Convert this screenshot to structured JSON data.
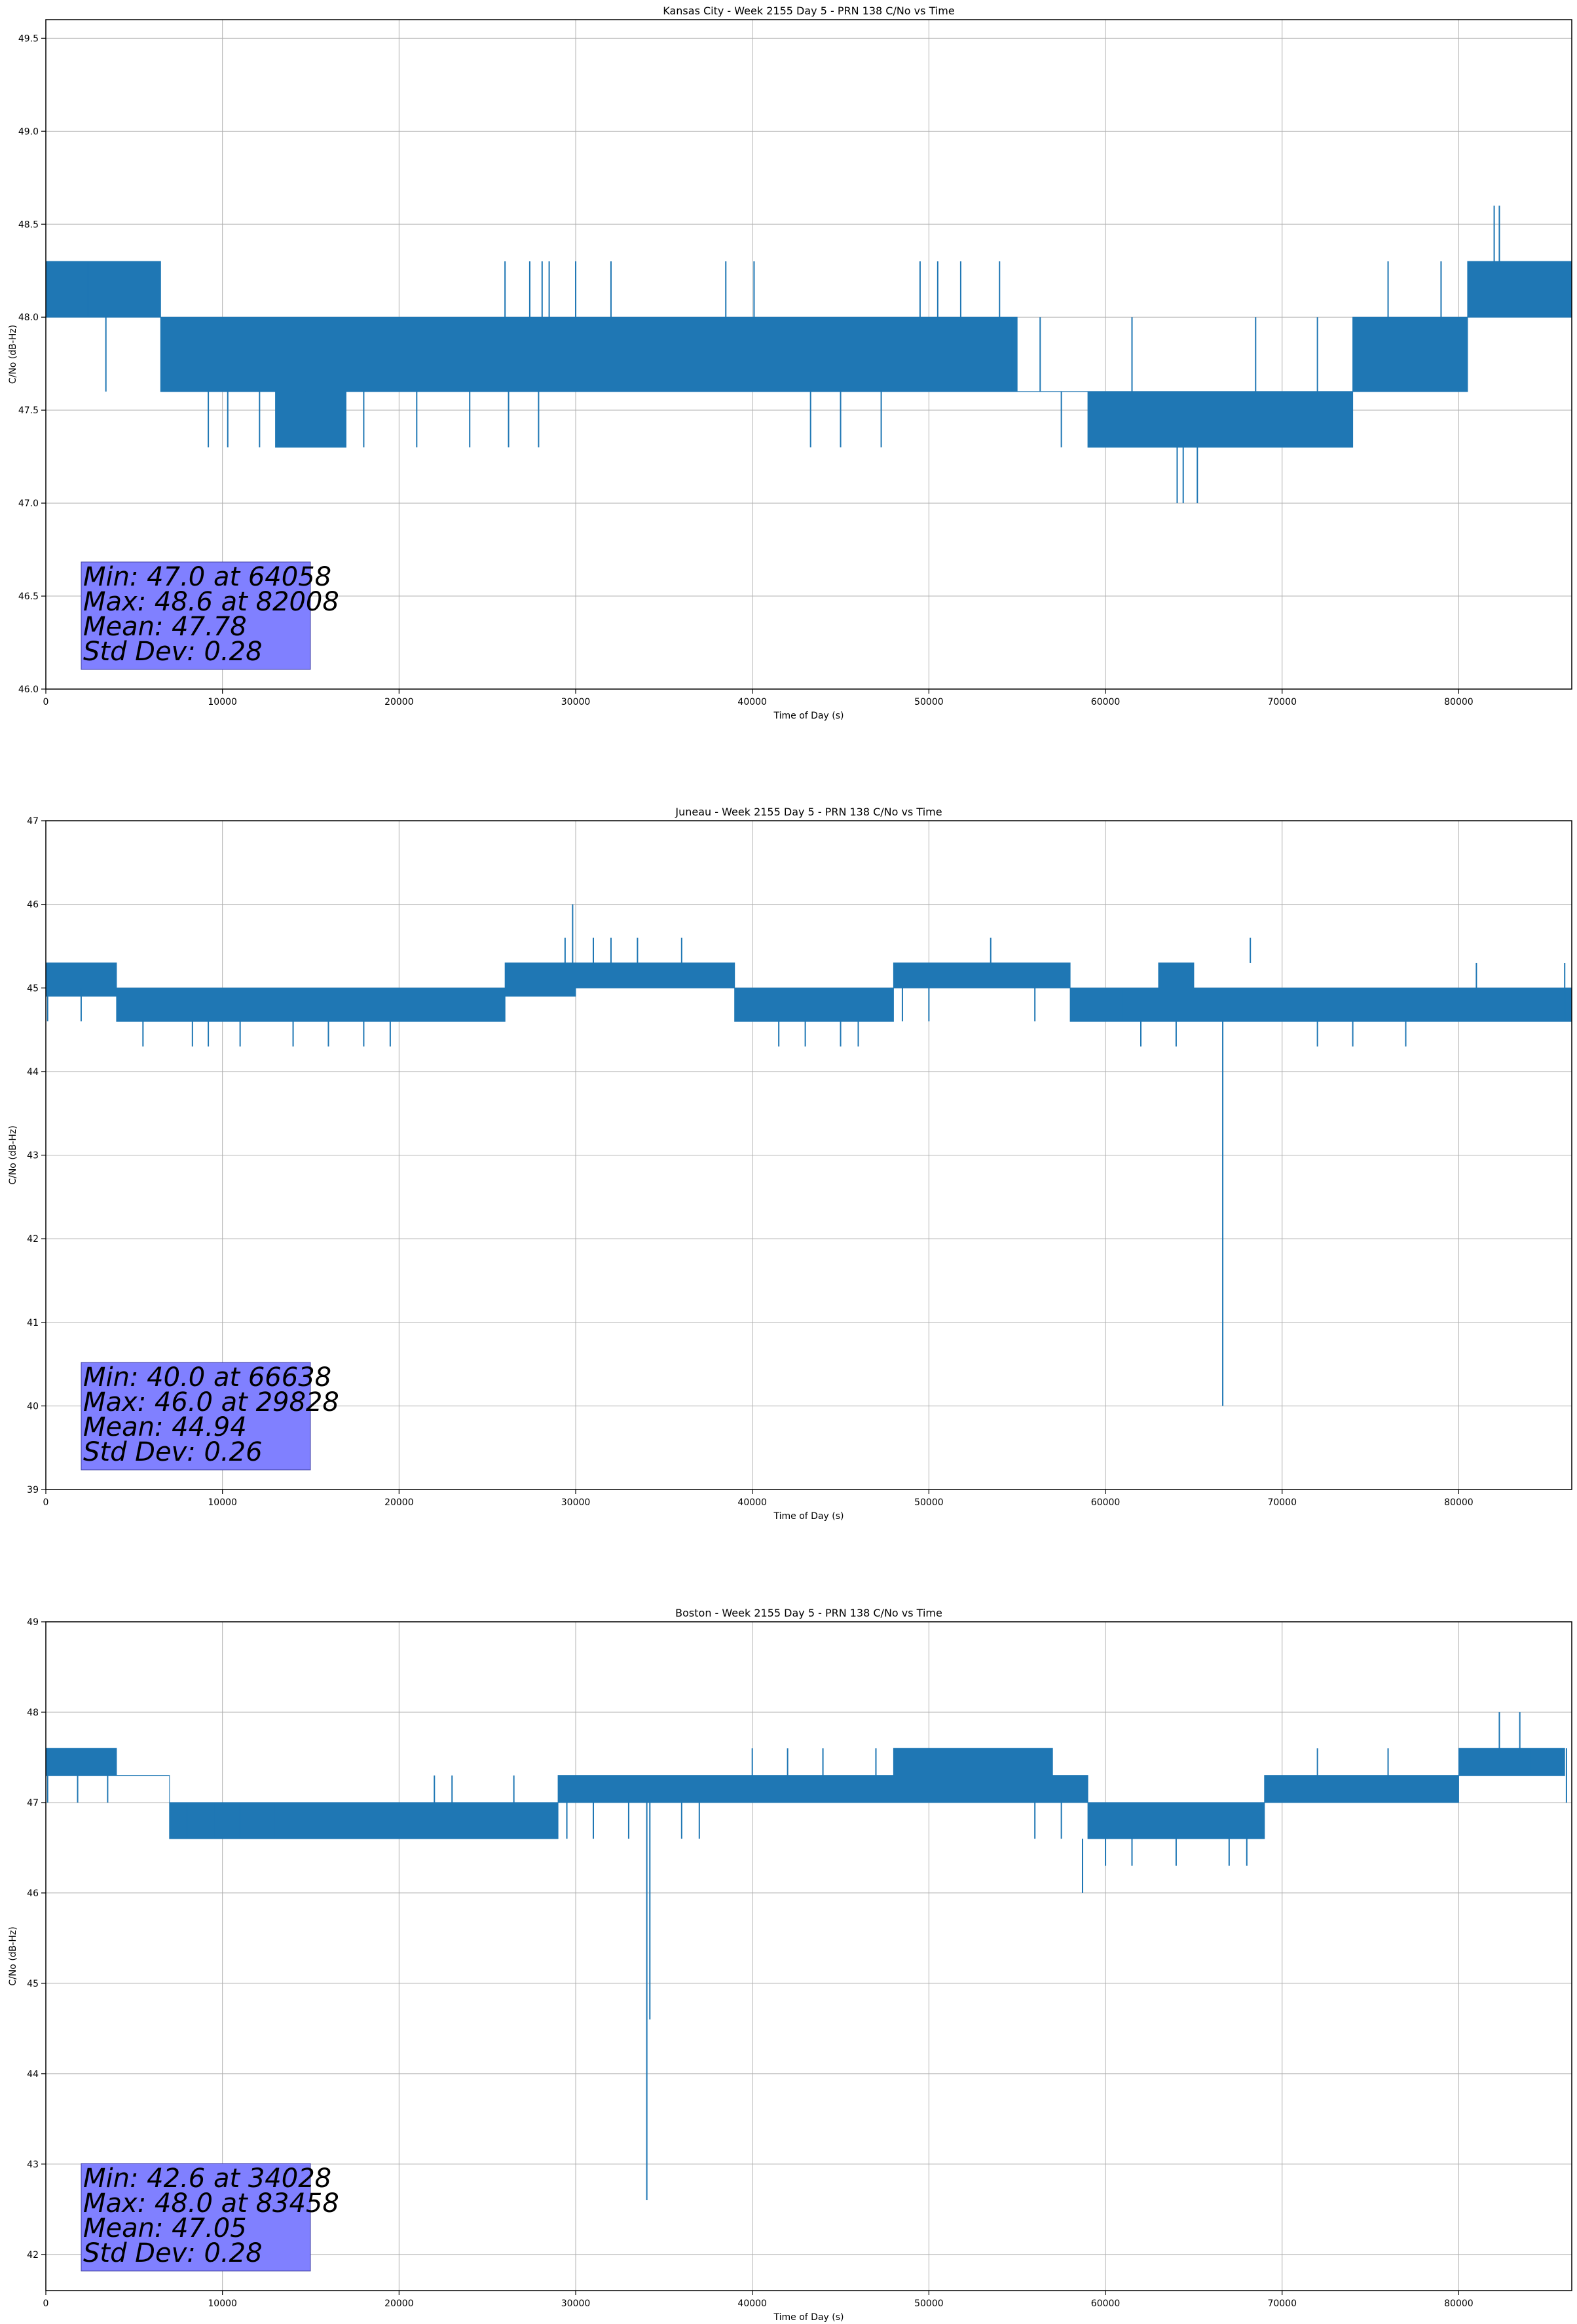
{
  "figure": {
    "background": "#ffffff"
  },
  "style": {
    "line_color": "#1f77b4",
    "grid_color": "#b0b0b0",
    "stats_box_color": "#8080ff"
  },
  "chart_data": [
    {
      "type": "line",
      "title": "Kansas City - Week 2155 Day 5 - PRN 138 C/No vs Time",
      "xlabel": "Time of Day (s)",
      "ylabel": "C/No (dB-Hz)",
      "xlim": [
        0,
        86400
      ],
      "ylim": [
        46.0,
        49.6
      ],
      "grid": true,
      "xticks": [
        0,
        10000,
        20000,
        30000,
        40000,
        50000,
        60000,
        70000,
        80000
      ],
      "xtick_labels": [
        "0",
        "10000",
        "20000",
        "30000",
        "40000",
        "50000",
        "60000",
        "70000",
        "80000"
      ],
      "yticks": [
        46.0,
        46.5,
        47.0,
        47.5,
        48.0,
        48.5,
        49.0,
        49.5
      ],
      "ytick_labels": [
        "46.0",
        "46.5",
        "47.0",
        "47.5",
        "48.0",
        "48.5",
        "49.0",
        "49.5"
      ],
      "series": [
        {
          "name": "C/No",
          "x": [
            0,
            6500,
            6500,
            13000,
            13000,
            17000,
            17000,
            26000,
            26000,
            43500,
            43500,
            50000,
            50000,
            55000,
            55000,
            59000,
            59000,
            64000,
            64000,
            68000,
            68000,
            74000,
            74000,
            80500,
            80500,
            86400
          ],
          "lower": [
            48.0,
            48.0,
            47.6,
            47.6,
            47.3,
            47.3,
            47.6,
            47.6,
            47.6,
            47.6,
            47.6,
            47.6,
            47.6,
            47.6,
            47.6,
            47.6,
            47.3,
            47.3,
            47.3,
            47.3,
            47.3,
            47.3,
            47.6,
            47.6,
            48.0,
            48.0
          ],
          "upper": [
            48.3,
            48.3,
            48.0,
            48.0,
            48.0,
            48.0,
            48.0,
            48.0,
            48.0,
            48.0,
            48.0,
            48.0,
            48.0,
            48.0,
            47.6,
            47.6,
            47.6,
            47.6,
            47.6,
            47.6,
            47.6,
            47.6,
            48.0,
            48.0,
            48.3,
            48.3
          ],
          "spikes": [
            [
              3400,
              47.6,
              48.0
            ],
            [
              2400,
              48.0,
              48.3
            ],
            [
              9200,
              47.3,
              47.6
            ],
            [
              10300,
              47.3,
              47.6
            ],
            [
              12100,
              47.3,
              47.6
            ],
            [
              14700,
              47.6,
              48.0
            ],
            [
              18000,
              47.3,
              47.6
            ],
            [
              21000,
              47.3,
              47.6
            ],
            [
              24000,
              47.3,
              47.6
            ],
            [
              26000,
              48.0,
              48.3
            ],
            [
              27400,
              48.0,
              48.3
            ],
            [
              28100,
              48.0,
              48.3
            ],
            [
              28500,
              48.0,
              48.3
            ],
            [
              30000,
              48.0,
              48.3
            ],
            [
              32000,
              48.0,
              48.3
            ],
            [
              38500,
              48.0,
              48.3
            ],
            [
              40100,
              48.0,
              48.3
            ],
            [
              26200,
              47.3,
              47.6
            ],
            [
              27900,
              47.3,
              47.6
            ],
            [
              43300,
              47.3,
              47.6
            ],
            [
              45000,
              47.3,
              47.6
            ],
            [
              47300,
              47.3,
              47.6
            ],
            [
              49500,
              48.0,
              48.3
            ],
            [
              50500,
              48.0,
              48.3
            ],
            [
              51800,
              48.0,
              48.3
            ],
            [
              54000,
              48.0,
              48.3
            ],
            [
              54700,
              47.6,
              48.0
            ],
            [
              56300,
              47.6,
              48.0
            ],
            [
              57500,
              47.3,
              47.6
            ],
            [
              61500,
              47.6,
              48.0
            ],
            [
              64058,
              47.0,
              47.3
            ],
            [
              64400,
              47.0,
              47.3
            ],
            [
              65200,
              47.0,
              47.3
            ],
            [
              68500,
              47.6,
              48.0
            ],
            [
              72000,
              47.6,
              48.0
            ],
            [
              76000,
              48.0,
              48.3
            ],
            [
              79000,
              48.0,
              48.3
            ],
            [
              82008,
              48.3,
              48.6
            ],
            [
              82300,
              48.3,
              48.6
            ]
          ]
        }
      ],
      "stats": {
        "min": "Min: 47.0 at 64058",
        "max": "Max: 48.6 at 82008",
        "mean": "Mean: 47.78",
        "std": "Std Dev: 0.28"
      }
    },
    {
      "type": "line",
      "title": "Juneau - Week 2155 Day 5 - PRN 138 C/No vs Time",
      "xlabel": "Time of Day (s)",
      "ylabel": "C/No (dB-Hz)",
      "xlim": [
        0,
        86400
      ],
      "ylim": [
        39,
        47
      ],
      "grid": true,
      "xticks": [
        0,
        10000,
        20000,
        30000,
        40000,
        50000,
        60000,
        70000,
        80000
      ],
      "xtick_labels": [
        "0",
        "10000",
        "20000",
        "30000",
        "40000",
        "50000",
        "60000",
        "70000",
        "80000"
      ],
      "yticks": [
        39,
        40,
        41,
        42,
        43,
        44,
        45,
        46,
        47
      ],
      "ytick_labels": [
        "39",
        "40",
        "41",
        "42",
        "43",
        "44",
        "45",
        "46",
        "47"
      ],
      "series": [
        {
          "name": "C/No",
          "x": [
            0,
            4000,
            4000,
            8000,
            8000,
            12000,
            12000,
            26000,
            26000,
            30000,
            30000,
            34000,
            34000,
            39000,
            39000,
            43000,
            43000,
            48000,
            48000,
            58000,
            58000,
            63000,
            63000,
            65000,
            65000,
            75000,
            75000,
            86400
          ],
          "lower": [
            44.9,
            44.9,
            44.6,
            44.6,
            44.6,
            44.6,
            44.6,
            44.6,
            44.9,
            44.9,
            45.0,
            45.0,
            45.0,
            45.0,
            44.6,
            44.6,
            44.6,
            44.6,
            45.0,
            45.0,
            44.6,
            44.6,
            44.6,
            44.6,
            44.6,
            44.6,
            44.6,
            44.6
          ],
          "upper": [
            45.3,
            45.3,
            45.0,
            45.0,
            45.0,
            45.0,
            45.0,
            45.0,
            45.3,
            45.3,
            45.3,
            45.3,
            45.3,
            45.3,
            45.0,
            45.0,
            45.0,
            45.0,
            45.3,
            45.3,
            45.0,
            45.0,
            45.3,
            45.3,
            45.0,
            45.0,
            45.0,
            45.0
          ],
          "spikes": [
            [
              100,
              44.6,
              45.3
            ],
            [
              2000,
              44.6,
              45.0
            ],
            [
              5500,
              44.3,
              44.6
            ],
            [
              8300,
              44.3,
              44.6
            ],
            [
              9200,
              44.3,
              44.6
            ],
            [
              11000,
              44.3,
              44.6
            ],
            [
              14000,
              44.3,
              44.6
            ],
            [
              16000,
              44.3,
              44.6
            ],
            [
              18000,
              44.3,
              44.6
            ],
            [
              19500,
              44.3,
              44.6
            ],
            [
              29400,
              45.3,
              45.6
            ],
            [
              29828,
              45.3,
              46.0
            ],
            [
              31000,
              45.3,
              45.6
            ],
            [
              32000,
              45.3,
              45.6
            ],
            [
              33500,
              45.3,
              45.6
            ],
            [
              36000,
              45.3,
              45.6
            ],
            [
              41500,
              44.3,
              44.6
            ],
            [
              43000,
              44.3,
              44.6
            ],
            [
              45000,
              44.3,
              44.6
            ],
            [
              46000,
              44.3,
              44.6
            ],
            [
              48500,
              44.6,
              45.0
            ],
            [
              50000,
              44.6,
              45.0
            ],
            [
              53500,
              45.3,
              45.6
            ],
            [
              56000,
              44.6,
              45.0
            ],
            [
              61000,
              44.6,
              45.0
            ],
            [
              62000,
              44.3,
              44.6
            ],
            [
              64000,
              44.3,
              44.6
            ],
            [
              66638,
              40.0,
              44.6
            ],
            [
              68200,
              45.3,
              45.6
            ],
            [
              72000,
              44.3,
              44.6
            ],
            [
              74000,
              44.3,
              44.6
            ],
            [
              77000,
              44.3,
              44.6
            ],
            [
              81000,
              45.0,
              45.3
            ],
            [
              86000,
              44.6,
              45.3
            ]
          ]
        }
      ],
      "stats": {
        "min": "Min: 40.0 at 66638",
        "max": "Max: 46.0 at 29828",
        "mean": "Mean: 44.94",
        "std": "Std Dev: 0.26"
      }
    },
    {
      "type": "line",
      "title": "Boston - Week 2155 Day 5 - PRN 138 C/No vs Time",
      "xlabel": "Time of Day (s)",
      "ylabel": "C/No (dB-Hz)",
      "xlim": [
        0,
        86400
      ],
      "ylim": [
        41.6,
        49
      ],
      "grid": true,
      "xticks": [
        0,
        10000,
        20000,
        30000,
        40000,
        50000,
        60000,
        70000,
        80000
      ],
      "xtick_labels": [
        "0",
        "10000",
        "20000",
        "30000",
        "40000",
        "50000",
        "60000",
        "70000",
        "80000"
      ],
      "yticks": [
        42,
        43,
        44,
        45,
        46,
        47,
        48,
        49
      ],
      "ytick_labels": [
        "42",
        "43",
        "44",
        "45",
        "46",
        "47",
        "48",
        "49"
      ],
      "series": [
        {
          "name": "C/No",
          "x": [
            0,
            4000,
            4000,
            7000,
            7000,
            16000,
            16000,
            29000,
            29000,
            34000,
            34000,
            48000,
            48000,
            57000,
            57000,
            59000,
            59000,
            69000,
            69000,
            74000,
            74000,
            80000,
            80000,
            86000
          ],
          "lower": [
            47.3,
            47.3,
            47.3,
            47.3,
            46.6,
            46.6,
            46.6,
            46.6,
            47.0,
            47.0,
            47.0,
            47.0,
            47.0,
            47.0,
            47.0,
            47.0,
            46.6,
            46.6,
            47.0,
            47.0,
            47.0,
            47.0,
            47.3,
            47.3
          ],
          "upper": [
            47.6,
            47.6,
            47.3,
            47.3,
            47.0,
            47.0,
            47.0,
            47.0,
            47.3,
            47.3,
            47.3,
            47.3,
            47.6,
            47.6,
            47.3,
            47.3,
            47.0,
            47.0,
            47.3,
            47.3,
            47.3,
            47.3,
            47.6,
            47.6
          ],
          "spikes": [
            [
              100,
              47.0,
              47.6
            ],
            [
              1800,
              47.0,
              47.3
            ],
            [
              3500,
              47.0,
              47.3
            ],
            [
              7100,
              46.6,
              47.0
            ],
            [
              8000,
              46.6,
              47.0
            ],
            [
              9500,
              46.6,
              47.0
            ],
            [
              11000,
              46.6,
              47.0
            ],
            [
              13000,
              46.6,
              47.0
            ],
            [
              22000,
              47.0,
              47.3
            ],
            [
              23000,
              47.0,
              47.3
            ],
            [
              26500,
              47.0,
              47.3
            ],
            [
              29500,
              46.6,
              47.0
            ],
            [
              31000,
              46.6,
              47.0
            ],
            [
              33000,
              46.6,
              47.0
            ],
            [
              34028,
              42.6,
              47.0
            ],
            [
              34200,
              44.6,
              47.0
            ],
            [
              36000,
              46.6,
              47.0
            ],
            [
              37000,
              46.6,
              47.0
            ],
            [
              40000,
              47.3,
              47.6
            ],
            [
              42000,
              47.3,
              47.6
            ],
            [
              44000,
              47.3,
              47.6
            ],
            [
              47000,
              47.3,
              47.6
            ],
            [
              56000,
              46.6,
              47.0
            ],
            [
              57500,
              46.6,
              47.0
            ],
            [
              58700,
              46.0,
              46.6
            ],
            [
              60000,
              46.3,
              46.6
            ],
            [
              61500,
              46.3,
              46.6
            ],
            [
              64000,
              46.3,
              46.6
            ],
            [
              67000,
              46.3,
              46.6
            ],
            [
              68000,
              46.3,
              46.6
            ],
            [
              72000,
              47.3,
              47.6
            ],
            [
              76000,
              47.3,
              47.6
            ],
            [
              82300,
              47.6,
              48.0
            ],
            [
              83458,
              47.6,
              48.0
            ],
            [
              84000,
              47.3,
              47.6
            ],
            [
              86100,
              47.0,
              47.6
            ]
          ]
        }
      ],
      "stats": {
        "min": "Min: 42.6 at 34028",
        "max": "Max: 48.0 at 83458",
        "mean": "Mean: 47.05",
        "std": "Std Dev: 0.28"
      }
    }
  ]
}
